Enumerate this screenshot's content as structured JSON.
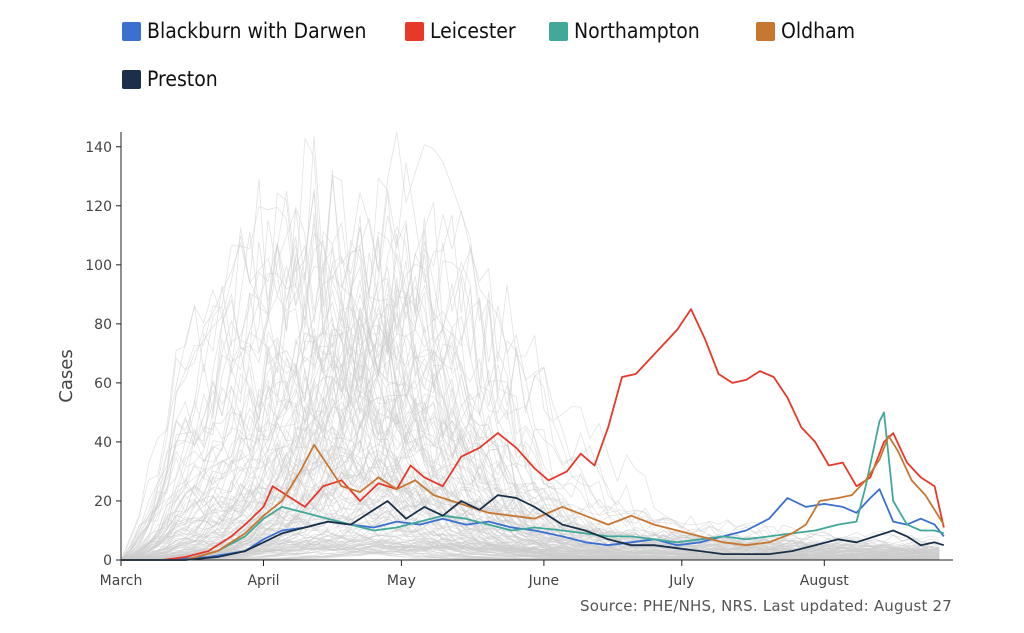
{
  "chart_data": {
    "type": "line",
    "ylabel": "Cases",
    "xlabel": "",
    "ylim": [
      0,
      145
    ],
    "yticks": [
      0,
      20,
      40,
      60,
      80,
      100,
      120,
      140
    ],
    "x_axis": {
      "start": "2020-03-01",
      "end": "2020-08-27",
      "ticks": [
        {
          "date": "2020-03-01",
          "label": "March"
        },
        {
          "date": "2020-04-01",
          "label": "April"
        },
        {
          "date": "2020-05-01",
          "label": "May"
        },
        {
          "date": "2020-06-01",
          "label": "June"
        },
        {
          "date": "2020-07-01",
          "label": "July"
        },
        {
          "date": "2020-08-01",
          "label": "August"
        }
      ]
    },
    "background_series_color": "#cccccc",
    "legend_position": "top",
    "series": [
      {
        "name": "Blackburn with Darwen",
        "color": "#3b6fd0",
        "points": [
          [
            "2020-03-01",
            0
          ],
          [
            "2020-03-10",
            0
          ],
          [
            "2020-03-20",
            1
          ],
          [
            "2020-03-28",
            3
          ],
          [
            "2020-04-01",
            7
          ],
          [
            "2020-04-05",
            10
          ],
          [
            "2020-04-10",
            11
          ],
          [
            "2020-04-15",
            13
          ],
          [
            "2020-04-20",
            12
          ],
          [
            "2020-04-25",
            11
          ],
          [
            "2020-04-30",
            13
          ],
          [
            "2020-05-05",
            12
          ],
          [
            "2020-05-10",
            14
          ],
          [
            "2020-05-15",
            12
          ],
          [
            "2020-05-20",
            13
          ],
          [
            "2020-05-25",
            11
          ],
          [
            "2020-05-30",
            10
          ],
          [
            "2020-06-05",
            8
          ],
          [
            "2020-06-10",
            6
          ],
          [
            "2020-06-15",
            5
          ],
          [
            "2020-06-20",
            6
          ],
          [
            "2020-06-25",
            7
          ],
          [
            "2020-06-30",
            5
          ],
          [
            "2020-07-05",
            6
          ],
          [
            "2020-07-10",
            8
          ],
          [
            "2020-07-15",
            10
          ],
          [
            "2020-07-20",
            14
          ],
          [
            "2020-07-24",
            21
          ],
          [
            "2020-07-28",
            18
          ],
          [
            "2020-08-01",
            19
          ],
          [
            "2020-08-05",
            18
          ],
          [
            "2020-08-08",
            16
          ],
          [
            "2020-08-11",
            21
          ],
          [
            "2020-08-13",
            24
          ],
          [
            "2020-08-16",
            13
          ],
          [
            "2020-08-19",
            12
          ],
          [
            "2020-08-22",
            14
          ],
          [
            "2020-08-25",
            12
          ],
          [
            "2020-08-27",
            8
          ]
        ]
      },
      {
        "name": "Leicester",
        "color": "#e8382a",
        "points": [
          [
            "2020-03-01",
            0
          ],
          [
            "2020-03-10",
            0
          ],
          [
            "2020-03-15",
            1
          ],
          [
            "2020-03-20",
            3
          ],
          [
            "2020-03-25",
            8
          ],
          [
            "2020-03-28",
            12
          ],
          [
            "2020-04-01",
            18
          ],
          [
            "2020-04-03",
            25
          ],
          [
            "2020-04-06",
            22
          ],
          [
            "2020-04-10",
            18
          ],
          [
            "2020-04-14",
            25
          ],
          [
            "2020-04-18",
            27
          ],
          [
            "2020-04-22",
            20
          ],
          [
            "2020-04-26",
            26
          ],
          [
            "2020-04-30",
            24
          ],
          [
            "2020-05-03",
            32
          ],
          [
            "2020-05-06",
            28
          ],
          [
            "2020-05-10",
            25
          ],
          [
            "2020-05-14",
            35
          ],
          [
            "2020-05-18",
            38
          ],
          [
            "2020-05-22",
            43
          ],
          [
            "2020-05-26",
            38
          ],
          [
            "2020-05-30",
            31
          ],
          [
            "2020-06-02",
            27
          ],
          [
            "2020-06-06",
            30
          ],
          [
            "2020-06-09",
            36
          ],
          [
            "2020-06-12",
            32
          ],
          [
            "2020-06-15",
            45
          ],
          [
            "2020-06-18",
            62
          ],
          [
            "2020-06-21",
            63
          ],
          [
            "2020-06-24",
            68
          ],
          [
            "2020-06-27",
            73
          ],
          [
            "2020-06-30",
            78
          ],
          [
            "2020-07-03",
            85
          ],
          [
            "2020-07-06",
            75
          ],
          [
            "2020-07-09",
            63
          ],
          [
            "2020-07-12",
            60
          ],
          [
            "2020-07-15",
            61
          ],
          [
            "2020-07-18",
            64
          ],
          [
            "2020-07-21",
            62
          ],
          [
            "2020-07-24",
            55
          ],
          [
            "2020-07-27",
            45
          ],
          [
            "2020-07-30",
            40
          ],
          [
            "2020-08-02",
            32
          ],
          [
            "2020-08-05",
            33
          ],
          [
            "2020-08-08",
            25
          ],
          [
            "2020-08-11",
            28
          ],
          [
            "2020-08-14",
            40
          ],
          [
            "2020-08-16",
            43
          ],
          [
            "2020-08-19",
            33
          ],
          [
            "2020-08-22",
            28
          ],
          [
            "2020-08-25",
            25
          ],
          [
            "2020-08-27",
            11
          ]
        ]
      },
      {
        "name": "Northampton",
        "color": "#42a89a",
        "points": [
          [
            "2020-03-01",
            0
          ],
          [
            "2020-03-15",
            0
          ],
          [
            "2020-03-22",
            3
          ],
          [
            "2020-03-28",
            8
          ],
          [
            "2020-04-01",
            14
          ],
          [
            "2020-04-05",
            18
          ],
          [
            "2020-04-10",
            16
          ],
          [
            "2020-04-15",
            14
          ],
          [
            "2020-04-20",
            12
          ],
          [
            "2020-04-25",
            10
          ],
          [
            "2020-04-30",
            11
          ],
          [
            "2020-05-05",
            13
          ],
          [
            "2020-05-10",
            15
          ],
          [
            "2020-05-15",
            14
          ],
          [
            "2020-05-20",
            12
          ],
          [
            "2020-05-25",
            10
          ],
          [
            "2020-05-30",
            11
          ],
          [
            "2020-06-05",
            10
          ],
          [
            "2020-06-10",
            9
          ],
          [
            "2020-06-15",
            8
          ],
          [
            "2020-06-20",
            8
          ],
          [
            "2020-06-25",
            7
          ],
          [
            "2020-06-30",
            6
          ],
          [
            "2020-07-05",
            7
          ],
          [
            "2020-07-10",
            8
          ],
          [
            "2020-07-15",
            7
          ],
          [
            "2020-07-20",
            8
          ],
          [
            "2020-07-25",
            9
          ],
          [
            "2020-07-30",
            10
          ],
          [
            "2020-08-04",
            12
          ],
          [
            "2020-08-08",
            13
          ],
          [
            "2020-08-10",
            25
          ],
          [
            "2020-08-13",
            47
          ],
          [
            "2020-08-14",
            50
          ],
          [
            "2020-08-16",
            20
          ],
          [
            "2020-08-19",
            12
          ],
          [
            "2020-08-22",
            10
          ],
          [
            "2020-08-25",
            10
          ],
          [
            "2020-08-27",
            9
          ]
        ]
      },
      {
        "name": "Oldham",
        "color": "#c87731",
        "points": [
          [
            "2020-03-01",
            0
          ],
          [
            "2020-03-15",
            0
          ],
          [
            "2020-03-22",
            3
          ],
          [
            "2020-03-28",
            9
          ],
          [
            "2020-04-01",
            15
          ],
          [
            "2020-04-05",
            20
          ],
          [
            "2020-04-09",
            30
          ],
          [
            "2020-04-12",
            39
          ],
          [
            "2020-04-15",
            32
          ],
          [
            "2020-04-18",
            25
          ],
          [
            "2020-04-22",
            23
          ],
          [
            "2020-04-26",
            28
          ],
          [
            "2020-04-30",
            24
          ],
          [
            "2020-05-04",
            27
          ],
          [
            "2020-05-08",
            22
          ],
          [
            "2020-05-12",
            20
          ],
          [
            "2020-05-16",
            18
          ],
          [
            "2020-05-20",
            16
          ],
          [
            "2020-05-25",
            15
          ],
          [
            "2020-05-30",
            14
          ],
          [
            "2020-06-05",
            18
          ],
          [
            "2020-06-10",
            15
          ],
          [
            "2020-06-15",
            12
          ],
          [
            "2020-06-20",
            15
          ],
          [
            "2020-06-25",
            12
          ],
          [
            "2020-06-30",
            10
          ],
          [
            "2020-07-05",
            8
          ],
          [
            "2020-07-10",
            6
          ],
          [
            "2020-07-15",
            5
          ],
          [
            "2020-07-20",
            6
          ],
          [
            "2020-07-25",
            9
          ],
          [
            "2020-07-28",
            12
          ],
          [
            "2020-07-31",
            20
          ],
          [
            "2020-08-04",
            21
          ],
          [
            "2020-08-07",
            22
          ],
          [
            "2020-08-10",
            27
          ],
          [
            "2020-08-13",
            34
          ],
          [
            "2020-08-15",
            42
          ],
          [
            "2020-08-17",
            37
          ],
          [
            "2020-08-20",
            27
          ],
          [
            "2020-08-23",
            22
          ],
          [
            "2020-08-27",
            12
          ]
        ]
      },
      {
        "name": "Preston",
        "color": "#1a3048",
        "points": [
          [
            "2020-03-01",
            0
          ],
          [
            "2020-03-15",
            0
          ],
          [
            "2020-03-22",
            1
          ],
          [
            "2020-03-28",
            3
          ],
          [
            "2020-04-01",
            6
          ],
          [
            "2020-04-05",
            9
          ],
          [
            "2020-04-10",
            11
          ],
          [
            "2020-04-15",
            13
          ],
          [
            "2020-04-20",
            12
          ],
          [
            "2020-04-25",
            17
          ],
          [
            "2020-04-28",
            20
          ],
          [
            "2020-05-02",
            14
          ],
          [
            "2020-05-06",
            18
          ],
          [
            "2020-05-10",
            15
          ],
          [
            "2020-05-14",
            20
          ],
          [
            "2020-05-18",
            17
          ],
          [
            "2020-05-22",
            22
          ],
          [
            "2020-05-26",
            21
          ],
          [
            "2020-05-30",
            18
          ],
          [
            "2020-06-05",
            12
          ],
          [
            "2020-06-10",
            10
          ],
          [
            "2020-06-15",
            7
          ],
          [
            "2020-06-20",
            5
          ],
          [
            "2020-06-25",
            5
          ],
          [
            "2020-06-30",
            4
          ],
          [
            "2020-07-05",
            3
          ],
          [
            "2020-07-10",
            2
          ],
          [
            "2020-07-15",
            2
          ],
          [
            "2020-07-20",
            2
          ],
          [
            "2020-07-25",
            3
          ],
          [
            "2020-07-30",
            5
          ],
          [
            "2020-08-04",
            7
          ],
          [
            "2020-08-08",
            6
          ],
          [
            "2020-08-12",
            8
          ],
          [
            "2020-08-16",
            10
          ],
          [
            "2020-08-19",
            8
          ],
          [
            "2020-08-22",
            5
          ],
          [
            "2020-08-25",
            6
          ],
          [
            "2020-08-27",
            5
          ]
        ]
      }
    ]
  },
  "source_text": "Source: PHE/NHS, NRS. Last updated: August 27"
}
